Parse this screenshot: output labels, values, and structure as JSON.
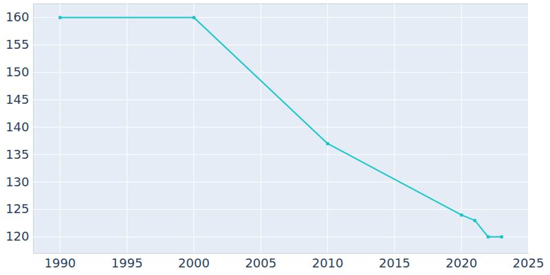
{
  "chart_data": {
    "type": "line",
    "x": [
      1990,
      2000,
      2010,
      2020,
      2021,
      2022,
      2023
    ],
    "values": [
      160,
      160,
      137,
      124,
      123,
      120,
      120
    ],
    "color": "#17c7cc",
    "marker": "circle",
    "xlim": [
      1988,
      2025
    ],
    "xticks": [
      1990,
      1995,
      2000,
      2005,
      2010,
      2015,
      2020,
      2025
    ],
    "ylim": [
      117,
      162.5
    ],
    "yticks": [
      120,
      125,
      130,
      135,
      140,
      145,
      150,
      155,
      160
    ],
    "grid": true
  }
}
